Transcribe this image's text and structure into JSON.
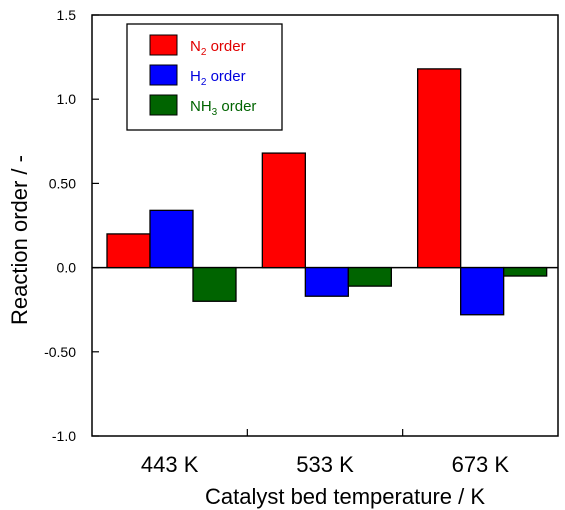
{
  "chart_data": {
    "type": "bar",
    "title": "",
    "xlabel": "Catalyst bed temperature / K",
    "ylabel": "Reaction order / -",
    "categories": [
      "443 K",
      "533 K",
      "673 K"
    ],
    "ylim": [
      -1.0,
      1.5
    ],
    "yticks": [
      "-1.0",
      "-0.50",
      "0.0",
      "0.50",
      "1.0",
      "1.5"
    ],
    "ytick_values": [
      -1.0,
      -0.5,
      0.0,
      0.5,
      1.0,
      1.5
    ],
    "grid": false,
    "legend_position": "top-left",
    "series": [
      {
        "name": "N2 order",
        "label_main": "N",
        "label_sub": "2",
        "label_rest": " order",
        "color": "#ff0000",
        "text_color": "#e00000",
        "values": [
          0.2,
          0.68,
          1.18
        ]
      },
      {
        "name": "H2 order",
        "label_main": "H",
        "label_sub": "2",
        "label_rest": " order",
        "color": "#0000ff",
        "text_color": "#0000dd",
        "values": [
          0.34,
          -0.17,
          -0.28
        ]
      },
      {
        "name": "NH3 order",
        "label_main": "NH",
        "label_sub": "3",
        "label_rest": " order",
        "color": "#006400",
        "text_color": "#006400",
        "values": [
          -0.2,
          -0.11,
          -0.05
        ]
      }
    ]
  }
}
